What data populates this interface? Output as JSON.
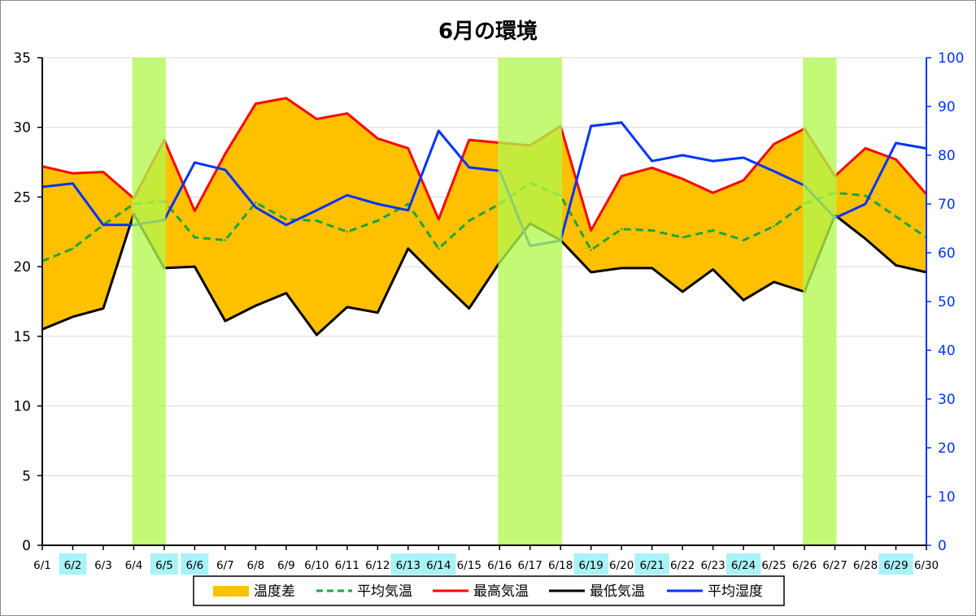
{
  "chart_data": {
    "type": "line",
    "title": "6月の環境",
    "categories": [
      "6/1",
      "6/2",
      "6/3",
      "6/4",
      "6/5",
      "6/6",
      "6/7",
      "6/8",
      "6/9",
      "6/10",
      "6/11",
      "6/12",
      "6/13",
      "6/14",
      "6/15",
      "6/16",
      "6/17",
      "6/18",
      "6/19",
      "6/20",
      "6/21",
      "6/22",
      "6/23",
      "6/24",
      "6/25",
      "6/26",
      "6/27",
      "6/28",
      "6/29",
      "6/30"
    ],
    "highlighted_categories": [
      "6/2",
      "6/5",
      "6/6",
      "6/13",
      "6/14",
      "6/19",
      "6/21",
      "6/24",
      "6/29"
    ],
    "shaded_bands": [
      {
        "from": "6/4",
        "to": "6/5"
      },
      {
        "from": "6/16",
        "to": "6/18"
      },
      {
        "from": "6/26",
        "to": "6/27"
      }
    ],
    "y_left": {
      "min": 0,
      "max": 35,
      "ticks": [
        0,
        5,
        10,
        15,
        20,
        25,
        30,
        35
      ]
    },
    "y_right": {
      "min": 0,
      "max": 100,
      "ticks": [
        0,
        10,
        20,
        30,
        40,
        50,
        60,
        70,
        80,
        90,
        100
      ]
    },
    "area_band": {
      "name": "温度差",
      "upper": "最高気温",
      "lower": "最低気温"
    },
    "series": [
      {
        "name": "最高気温",
        "axis": "left",
        "style": "solid",
        "values": [
          27.2,
          26.7,
          26.8,
          24.9,
          29.1,
          24.0,
          28.1,
          31.7,
          32.1,
          30.6,
          31.0,
          29.2,
          28.5,
          23.4,
          29.1,
          28.9,
          28.7,
          30.1,
          22.6,
          26.5,
          27.1,
          26.3,
          25.3,
          26.2,
          28.8,
          29.9,
          26.5,
          28.5,
          27.7,
          25.2
        ]
      },
      {
        "name": "最低気温",
        "axis": "left",
        "style": "solid",
        "values": [
          15.5,
          16.4,
          17.0,
          23.8,
          19.9,
          20.0,
          16.1,
          17.2,
          18.1,
          15.1,
          17.1,
          16.7,
          21.3,
          19.1,
          17.0,
          20.3,
          23.1,
          21.9,
          19.6,
          19.9,
          19.9,
          18.2,
          19.8,
          17.6,
          18.9,
          18.2,
          23.7,
          22.0,
          20.1,
          19.6
        ]
      },
      {
        "name": "平均気温",
        "axis": "left",
        "style": "dashed",
        "values": [
          20.4,
          21.3,
          23.0,
          24.5,
          24.7,
          22.1,
          21.9,
          24.6,
          23.4,
          23.3,
          22.5,
          23.3,
          24.5,
          21.3,
          23.3,
          24.5,
          26.0,
          25.1,
          21.2,
          22.7,
          22.6,
          22.1,
          22.6,
          21.9,
          22.9,
          24.5,
          25.3,
          25.1,
          23.6,
          22.1
        ]
      },
      {
        "name": "平均湿度",
        "axis": "right",
        "style": "solid",
        "values": [
          73.5,
          74.2,
          65.7,
          65.7,
          66.7,
          78.5,
          77.0,
          69.3,
          65.7,
          68.7,
          71.8,
          70.0,
          68.7,
          85.0,
          77.5,
          76.8,
          61.4,
          62.5,
          86.0,
          86.7,
          78.8,
          80.0,
          78.8,
          79.5,
          76.7,
          73.8,
          67.1,
          70.0,
          82.5,
          81.4
        ]
      }
    ],
    "legend": {
      "placement": "bottom",
      "entries": [
        "温度差",
        "平均気温",
        "最高気温",
        "最低気温",
        "平均湿度"
      ]
    },
    "colors": {
      "area": "#ffc000",
      "high": "#ff0000",
      "low": "#000000",
      "avg": "#1da53a",
      "humidity": "#0033ff",
      "band": "#b2f74d",
      "highlight": "#a8f3f8",
      "grid": "#d9d9d9",
      "right_axis": "#0033ff"
    }
  }
}
